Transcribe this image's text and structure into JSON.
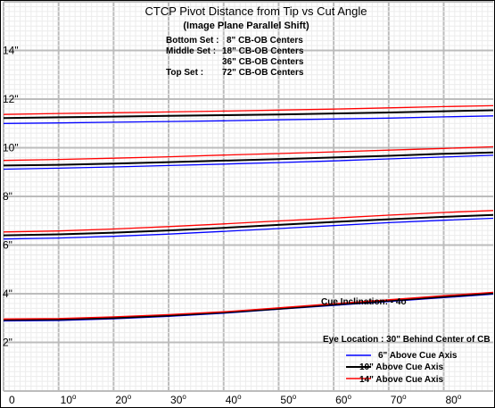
{
  "chart_data": {
    "type": "line",
    "title": "CTCP Pivot Distance from Tip vs Cut Angle",
    "subtitle": "(Image Plane Parallel Shift)",
    "xlabel": "",
    "ylabel": "",
    "xlim": [
      0,
      89
    ],
    "ylim": [
      0,
      16
    ],
    "x_ticks": [
      0,
      10,
      20,
      30,
      40,
      50,
      60,
      70,
      80
    ],
    "x_tick_labels": [
      "0",
      "10o",
      "20o",
      "30o",
      "40o",
      "50o",
      "60o",
      "70o",
      "80o"
    ],
    "y_ticks": [
      2,
      4,
      6,
      8,
      10,
      12,
      14
    ],
    "y_tick_labels": [
      "2\"",
      "4\"",
      "6\"",
      "8\"",
      "10\"",
      "12\"",
      "14\""
    ],
    "grid": true,
    "set_notes": [
      {
        "label": "Bottom Set :",
        "value": "8\" CB-OB Centers"
      },
      {
        "label": "Middle Set :",
        "value": "18\" CB-OB Centers"
      },
      {
        "label": "",
        "value": "36\" CB-OB Centers"
      },
      {
        "label": "Top Set :",
        "value": "72\" CB-OB Centers"
      }
    ],
    "annotations": [
      "Cue Inclination: - 4o",
      "Eye Location : 30\" Behind Center of CB"
    ],
    "legend_position": "bottom-right",
    "legend": [
      {
        "name": "6\" Above Cue Axis",
        "color": "#0000ff"
      },
      {
        "name": "10\" Above Cue Axis",
        "color": "#000000"
      },
      {
        "name": "14\" Above Cue Axis",
        "color": "#ff0000"
      }
    ],
    "series_colors": {
      "6in": "#0000ff",
      "10in": "#000000",
      "14in": "#ff0000"
    },
    "x": [
      0,
      10,
      20,
      30,
      40,
      50,
      60,
      70,
      80,
      89
    ],
    "sets": [
      {
        "set": "8\" CB-OB Centers",
        "series": [
          {
            "height": "6in",
            "values": [
              2.88,
              2.9,
              2.97,
              3.07,
              3.2,
              3.36,
              3.52,
              3.68,
              3.84,
              3.98
            ]
          },
          {
            "height": "10in",
            "values": [
              2.92,
              2.94,
              3.0,
              3.1,
              3.23,
              3.38,
              3.55,
              3.71,
              3.87,
              4.02
            ]
          },
          {
            "height": "14in",
            "values": [
              2.96,
              2.98,
              3.05,
              3.14,
              3.26,
              3.42,
              3.59,
              3.75,
              3.92,
              4.06
            ]
          }
        ]
      },
      {
        "set": "18\" CB-OB Centers",
        "series": [
          {
            "height": "6in",
            "values": [
              6.25,
              6.29,
              6.36,
              6.45,
              6.56,
              6.68,
              6.8,
              6.92,
              7.02,
              7.1
            ]
          },
          {
            "height": "10in",
            "values": [
              6.4,
              6.44,
              6.51,
              6.6,
              6.71,
              6.83,
              6.95,
              7.06,
              7.16,
              7.24
            ]
          },
          {
            "height": "14in",
            "values": [
              6.54,
              6.58,
              6.66,
              6.76,
              6.87,
              6.99,
              7.11,
              7.23,
              7.34,
              7.42
            ]
          }
        ]
      },
      {
        "set": "36\" CB-OB Centers",
        "series": [
          {
            "height": "6in",
            "values": [
              9.12,
              9.16,
              9.21,
              9.27,
              9.33,
              9.39,
              9.46,
              9.54,
              9.62,
              9.69
            ]
          },
          {
            "height": "10in",
            "values": [
              9.27,
              9.3,
              9.35,
              9.41,
              9.47,
              9.53,
              9.6,
              9.67,
              9.75,
              9.81
            ]
          },
          {
            "height": "14in",
            "values": [
              9.48,
              9.52,
              9.57,
              9.63,
              9.7,
              9.76,
              9.83,
              9.9,
              9.97,
              10.04
            ]
          }
        ]
      },
      {
        "set": "72\" CB-OB Centers",
        "series": [
          {
            "height": "6in",
            "values": [
              11.0,
              11.02,
              11.05,
              11.08,
              11.11,
              11.15,
              11.18,
              11.22,
              11.27,
              11.31
            ]
          },
          {
            "height": "10in",
            "values": [
              11.22,
              11.25,
              11.28,
              11.31,
              11.34,
              11.37,
              11.41,
              11.45,
              11.5,
              11.54
            ]
          },
          {
            "height": "14in",
            "values": [
              11.37,
              11.41,
              11.44,
              11.47,
              11.51,
              11.55,
              11.59,
              11.64,
              11.69,
              11.73
            ]
          }
        ]
      }
    ]
  }
}
